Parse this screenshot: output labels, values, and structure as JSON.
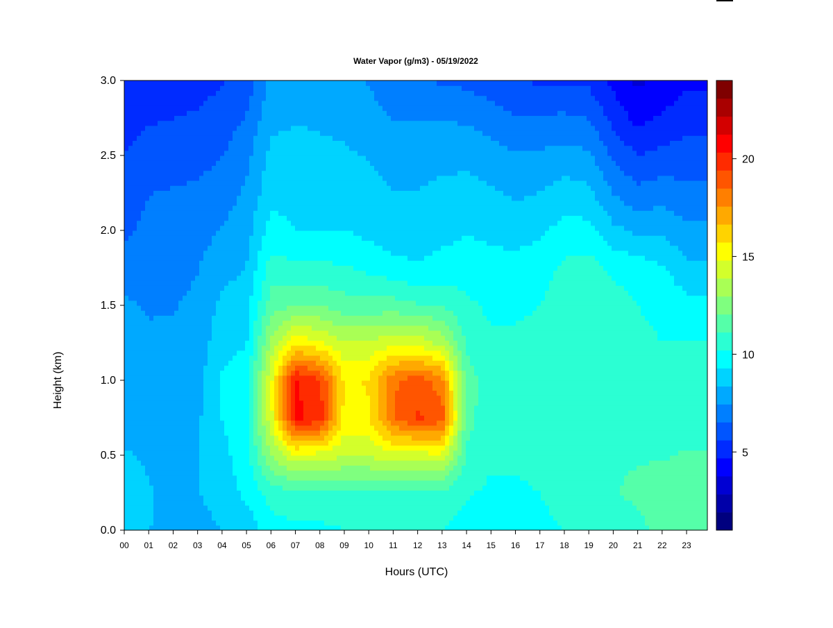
{
  "chart_data": {
    "type": "heatmap",
    "title": "Water Vapor (g/m3) - 05/19/2022",
    "xlabel": "Hours (UTC)",
    "ylabel": "Height (km)",
    "x_unit": "hours UTC",
    "xlim": [
      0,
      23.85
    ],
    "ylim": [
      0.0,
      3.0
    ],
    "x_ticks": [
      "00",
      "01",
      "02",
      "03",
      "04",
      "05",
      "06",
      "07",
      "08",
      "09",
      "10",
      "11",
      "12",
      "13",
      "14",
      "15",
      "16",
      "17",
      "18",
      "19",
      "20",
      "21",
      "22",
      "23"
    ],
    "y_ticks": [
      "0.0",
      "0.5",
      "1.0",
      "1.5",
      "2.0",
      "2.5",
      "3.0"
    ],
    "heights_km": [
      0.0,
      0.25,
      0.5,
      0.75,
      1.0,
      1.25,
      1.5,
      1.75,
      2.0,
      2.25,
      2.5,
      2.75,
      3.0
    ],
    "profiles": [
      {
        "hour": 0,
        "values": [
          8.8,
          8.6,
          8.4,
          8.2,
          8.0,
          7.8,
          7.6,
          7.0,
          6.3,
          5.9,
          5.6,
          5.3,
          5.0
        ]
      },
      {
        "hour": 1,
        "values": [
          8.4,
          8.4,
          8.3,
          8.1,
          7.9,
          7.7,
          7.3,
          7.0,
          6.8,
          6.5,
          6.0,
          5.5,
          5.1
        ]
      },
      {
        "hour": 2,
        "values": [
          8.0,
          8.2,
          8.1,
          8.0,
          7.8,
          7.6,
          7.4,
          7.2,
          7.0,
          6.6,
          6.1,
          5.6,
          5.2
        ]
      },
      {
        "hour": 3,
        "values": [
          8.0,
          8.3,
          8.3,
          8.2,
          8.0,
          7.8,
          7.6,
          7.4,
          7.1,
          6.7,
          6.2,
          5.7,
          5.3
        ]
      },
      {
        "hour": 4,
        "values": [
          8.4,
          8.8,
          9.0,
          9.3,
          9.4,
          9.0,
          8.6,
          8.0,
          7.5,
          7.0,
          6.5,
          6.0,
          5.5
        ]
      },
      {
        "hour": 5,
        "values": [
          8.6,
          9.5,
          9.8,
          10.0,
          9.8,
          9.2,
          8.9,
          8.4,
          8.0,
          7.6,
          7.2,
          6.6,
          6.0
        ]
      },
      {
        "hour": 6,
        "values": [
          9.8,
          10.6,
          13.0,
          14.5,
          14.6,
          13.2,
          11.6,
          10.6,
          9.6,
          9.0,
          8.6,
          8.1,
          7.7
        ]
      },
      {
        "hour": 7,
        "values": [
          10.0,
          10.8,
          14.6,
          20.5,
          20.5,
          15.5,
          12.0,
          10.4,
          9.3,
          9.0,
          8.7,
          8.3,
          8.0
        ]
      },
      {
        "hour": 8,
        "values": [
          10.0,
          10.8,
          14.4,
          20.0,
          19.5,
          15.0,
          12.0,
          10.4,
          9.2,
          8.9,
          8.6,
          8.2,
          7.9
        ]
      },
      {
        "hour": 9,
        "values": [
          10.2,
          10.8,
          14.0,
          15.4,
          15.6,
          14.0,
          11.5,
          10.3,
          9.3,
          8.9,
          8.5,
          8.1,
          7.7
        ]
      },
      {
        "hour": 10,
        "values": [
          10.3,
          10.8,
          14.0,
          15.6,
          15.8,
          14.0,
          11.4,
          10.0,
          9.0,
          8.7,
          8.3,
          7.8,
          7.4
        ]
      },
      {
        "hour": 11,
        "values": [
          10.2,
          10.8,
          14.4,
          18.5,
          18.3,
          14.6,
          11.5,
          9.6,
          8.7,
          8.4,
          8.0,
          7.4,
          6.8
        ]
      },
      {
        "hour": 12,
        "values": [
          10.2,
          10.8,
          14.4,
          19.5,
          19.0,
          14.5,
          11.2,
          9.4,
          8.7,
          8.4,
          8.0,
          7.4,
          6.6
        ]
      },
      {
        "hour": 13,
        "values": [
          10.2,
          10.8,
          14.6,
          19.0,
          18.0,
          13.6,
          11.0,
          9.6,
          9.0,
          8.6,
          8.1,
          7.4,
          6.4
        ]
      },
      {
        "hour": 14,
        "values": [
          9.8,
          10.3,
          11.0,
          11.4,
          11.5,
          11.0,
          10.4,
          9.8,
          9.2,
          8.7,
          8.1,
          7.3,
          6.3
        ]
      },
      {
        "hour": 15,
        "values": [
          9.7,
          10.0,
          10.4,
          10.6,
          10.7,
          10.4,
          10.0,
          9.6,
          9.1,
          8.5,
          7.8,
          7.0,
          6.0
        ]
      },
      {
        "hour": 16,
        "values": [
          9.8,
          10.0,
          10.4,
          10.6,
          10.6,
          10.4,
          10.0,
          9.6,
          8.9,
          8.2,
          7.5,
          6.6,
          5.6
        ]
      },
      {
        "hour": 17,
        "values": [
          9.8,
          10.2,
          10.6,
          10.8,
          10.8,
          10.5,
          10.2,
          9.8,
          9.1,
          8.4,
          7.6,
          6.6,
          5.5
        ]
      },
      {
        "hour": 18,
        "values": [
          10.2,
          10.8,
          11.0,
          11.0,
          11.0,
          10.8,
          10.6,
          10.4,
          9.6,
          8.8,
          7.8,
          6.7,
          5.5
        ]
      },
      {
        "hour": 19,
        "values": [
          10.2,
          10.8,
          11.0,
          11.0,
          11.0,
          11.0,
          11.0,
          10.6,
          9.6,
          8.6,
          7.6,
          6.5,
          5.4
        ]
      },
      {
        "hour": 20,
        "values": [
          10.4,
          11.0,
          11.0,
          10.8,
          10.8,
          10.8,
          10.6,
          10.0,
          8.6,
          7.4,
          6.4,
          5.3,
          4.4
        ]
      },
      {
        "hour": 21,
        "values": [
          10.8,
          11.4,
          11.0,
          10.8,
          10.6,
          10.4,
          10.2,
          9.8,
          8.2,
          6.8,
          5.6,
          4.4,
          3.6
        ]
      },
      {
        "hour": 22,
        "values": [
          11.4,
          11.8,
          11.0,
          10.6,
          10.4,
          10.2,
          10.0,
          9.4,
          8.2,
          7.0,
          5.9,
          4.8,
          4.0
        ]
      },
      {
        "hour": 23,
        "values": [
          11.8,
          12.0,
          11.2,
          10.8,
          10.4,
          10.2,
          9.6,
          8.6,
          7.6,
          6.8,
          6.0,
          5.2,
          4.5
        ]
      }
    ],
    "colorbar": {
      "min": 1,
      "max": 24,
      "ticks": [
        "5",
        "10",
        "15",
        "20"
      ],
      "tick_values": [
        5,
        10,
        15,
        20
      ],
      "colors": [
        "#00007F",
        "#0000A9",
        "#0000D3",
        "#0000FF",
        "#002BFF",
        "#0055FF",
        "#007FFF",
        "#00A9FF",
        "#00D3FF",
        "#00FFFF",
        "#2BFFD3",
        "#55FFA9",
        "#7FFF7F",
        "#A9FF55",
        "#D3FF2B",
        "#FFFF00",
        "#FFD300",
        "#FFA900",
        "#FF7F00",
        "#FF5500",
        "#FF2B00",
        "#FF0000",
        "#D30000",
        "#A90000",
        "#7F0000"
      ]
    }
  }
}
